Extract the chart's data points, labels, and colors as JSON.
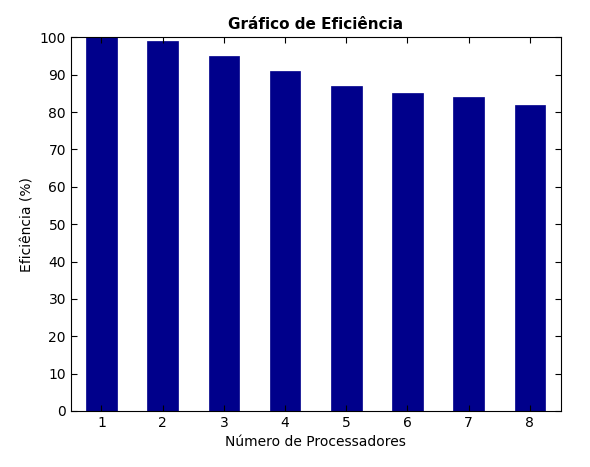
{
  "title": "Gráfico de Eficiência",
  "xlabel": "Número de Processadores",
  "ylabel": "Eficiência (%)",
  "categories": [
    1,
    2,
    3,
    4,
    5,
    6,
    7,
    8
  ],
  "values": [
    100,
    99,
    95,
    91,
    87,
    85,
    84,
    82
  ],
  "bar_color": "#00008B",
  "ylim": [
    0,
    100
  ],
  "yticks": [
    0,
    10,
    20,
    30,
    40,
    50,
    60,
    70,
    80,
    90,
    100
  ],
  "background_color": "#ffffff",
  "title_fontsize": 11,
  "label_fontsize": 10,
  "tick_fontsize": 10,
  "bar_width": 0.5
}
